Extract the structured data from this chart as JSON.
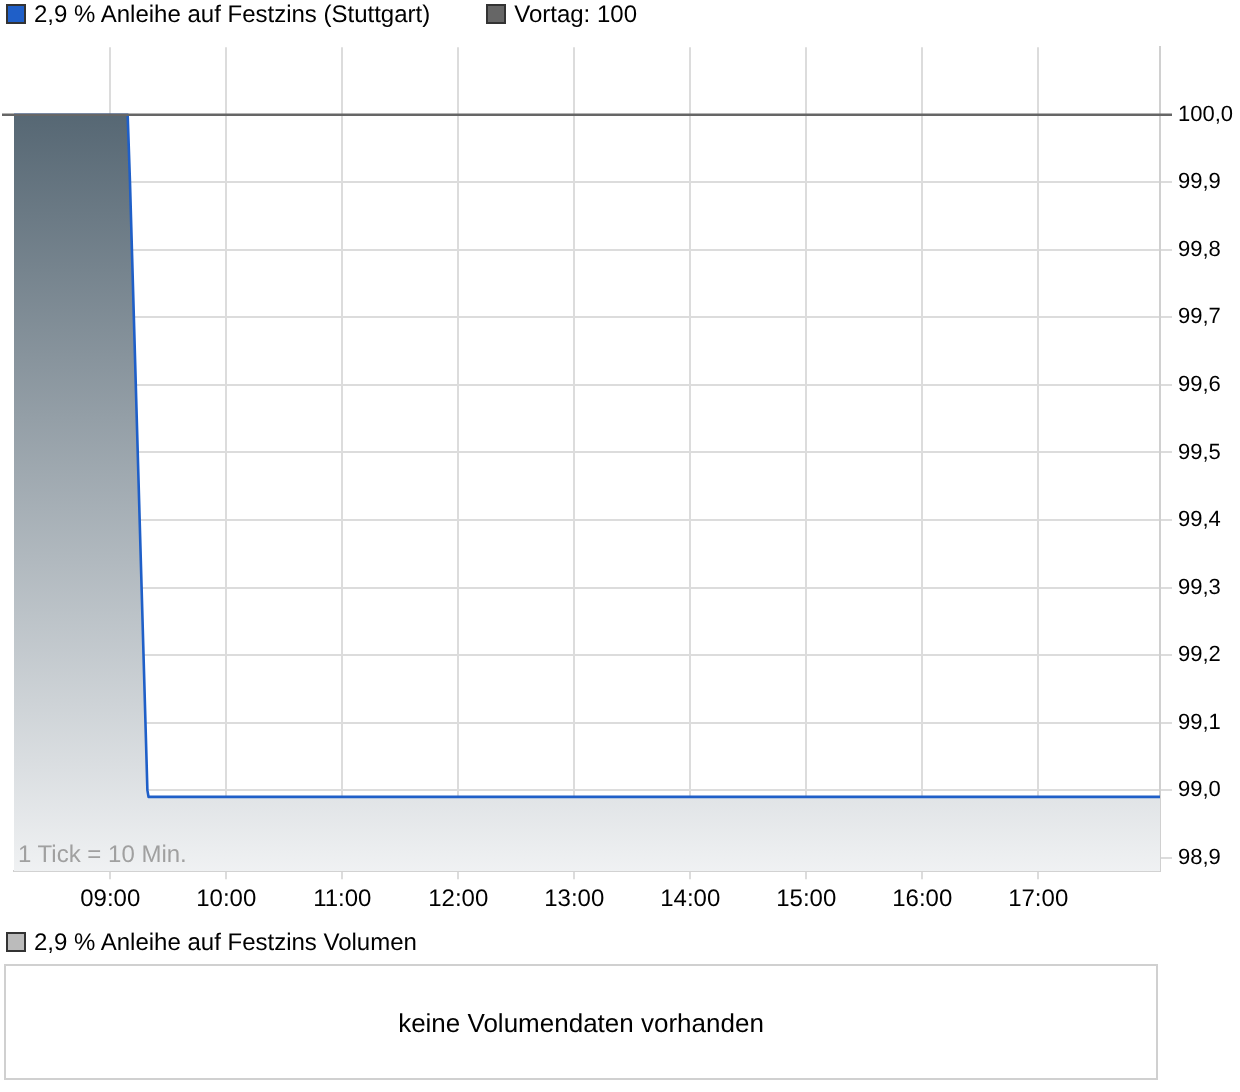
{
  "chart_data": [
    {
      "type": "area",
      "legend": "top left",
      "series": [
        {
          "name": "2,9 % Anleihe auf Festzins (Stuttgart)",
          "color": "#1f5fc8",
          "x": [
            8.17,
            9.15,
            9.17,
            9.32,
            9.33,
            18.05
          ],
          "values": [
            100.0,
            100.0,
            99.9,
            99.0,
            98.99,
            98.99
          ]
        }
      ],
      "xlim": [
        8.17,
        18.05
      ],
      "xticks": [
        {
          "value": 9,
          "label": "09:00"
        },
        {
          "value": 10,
          "label": "10:00"
        },
        {
          "value": 11,
          "label": "11:00"
        },
        {
          "value": 12,
          "label": "12:00"
        },
        {
          "value": 13,
          "label": "13:00"
        },
        {
          "value": 14,
          "label": "14:00"
        },
        {
          "value": 15,
          "label": "15:00"
        },
        {
          "value": 16,
          "label": "16:00"
        },
        {
          "value": 17,
          "label": "17:00"
        }
      ],
      "ylim": [
        98.88,
        100.1
      ],
      "yticks": [
        {
          "value": 98.9,
          "label": "98,9"
        },
        {
          "value": 99.0,
          "label": "99,0"
        },
        {
          "value": 99.1,
          "label": "99,1"
        },
        {
          "value": 99.2,
          "label": "99,2"
        },
        {
          "value": 99.3,
          "label": "99,3"
        },
        {
          "value": 99.4,
          "label": "99,4"
        },
        {
          "value": 99.5,
          "label": "99,5"
        },
        {
          "value": 99.6,
          "label": "99,6"
        },
        {
          "value": 99.7,
          "label": "99,7"
        },
        {
          "value": 99.8,
          "label": "99,8"
        },
        {
          "value": 99.9,
          "label": "99,9"
        },
        {
          "value": 100.0,
          "label": "100,0"
        }
      ],
      "grid": true,
      "ref_lines": [
        {
          "axis": "y",
          "value": 100,
          "label": "Vortag: 100",
          "color": "#666666"
        }
      ],
      "annotations": [
        "1 Tick = 10 Min."
      ]
    },
    {
      "type": "other",
      "title": "2,9 % Anleihe auf Festzins Volumen",
      "annotations": [
        "keine Volumendaten vorhanden"
      ]
    }
  ]
}
